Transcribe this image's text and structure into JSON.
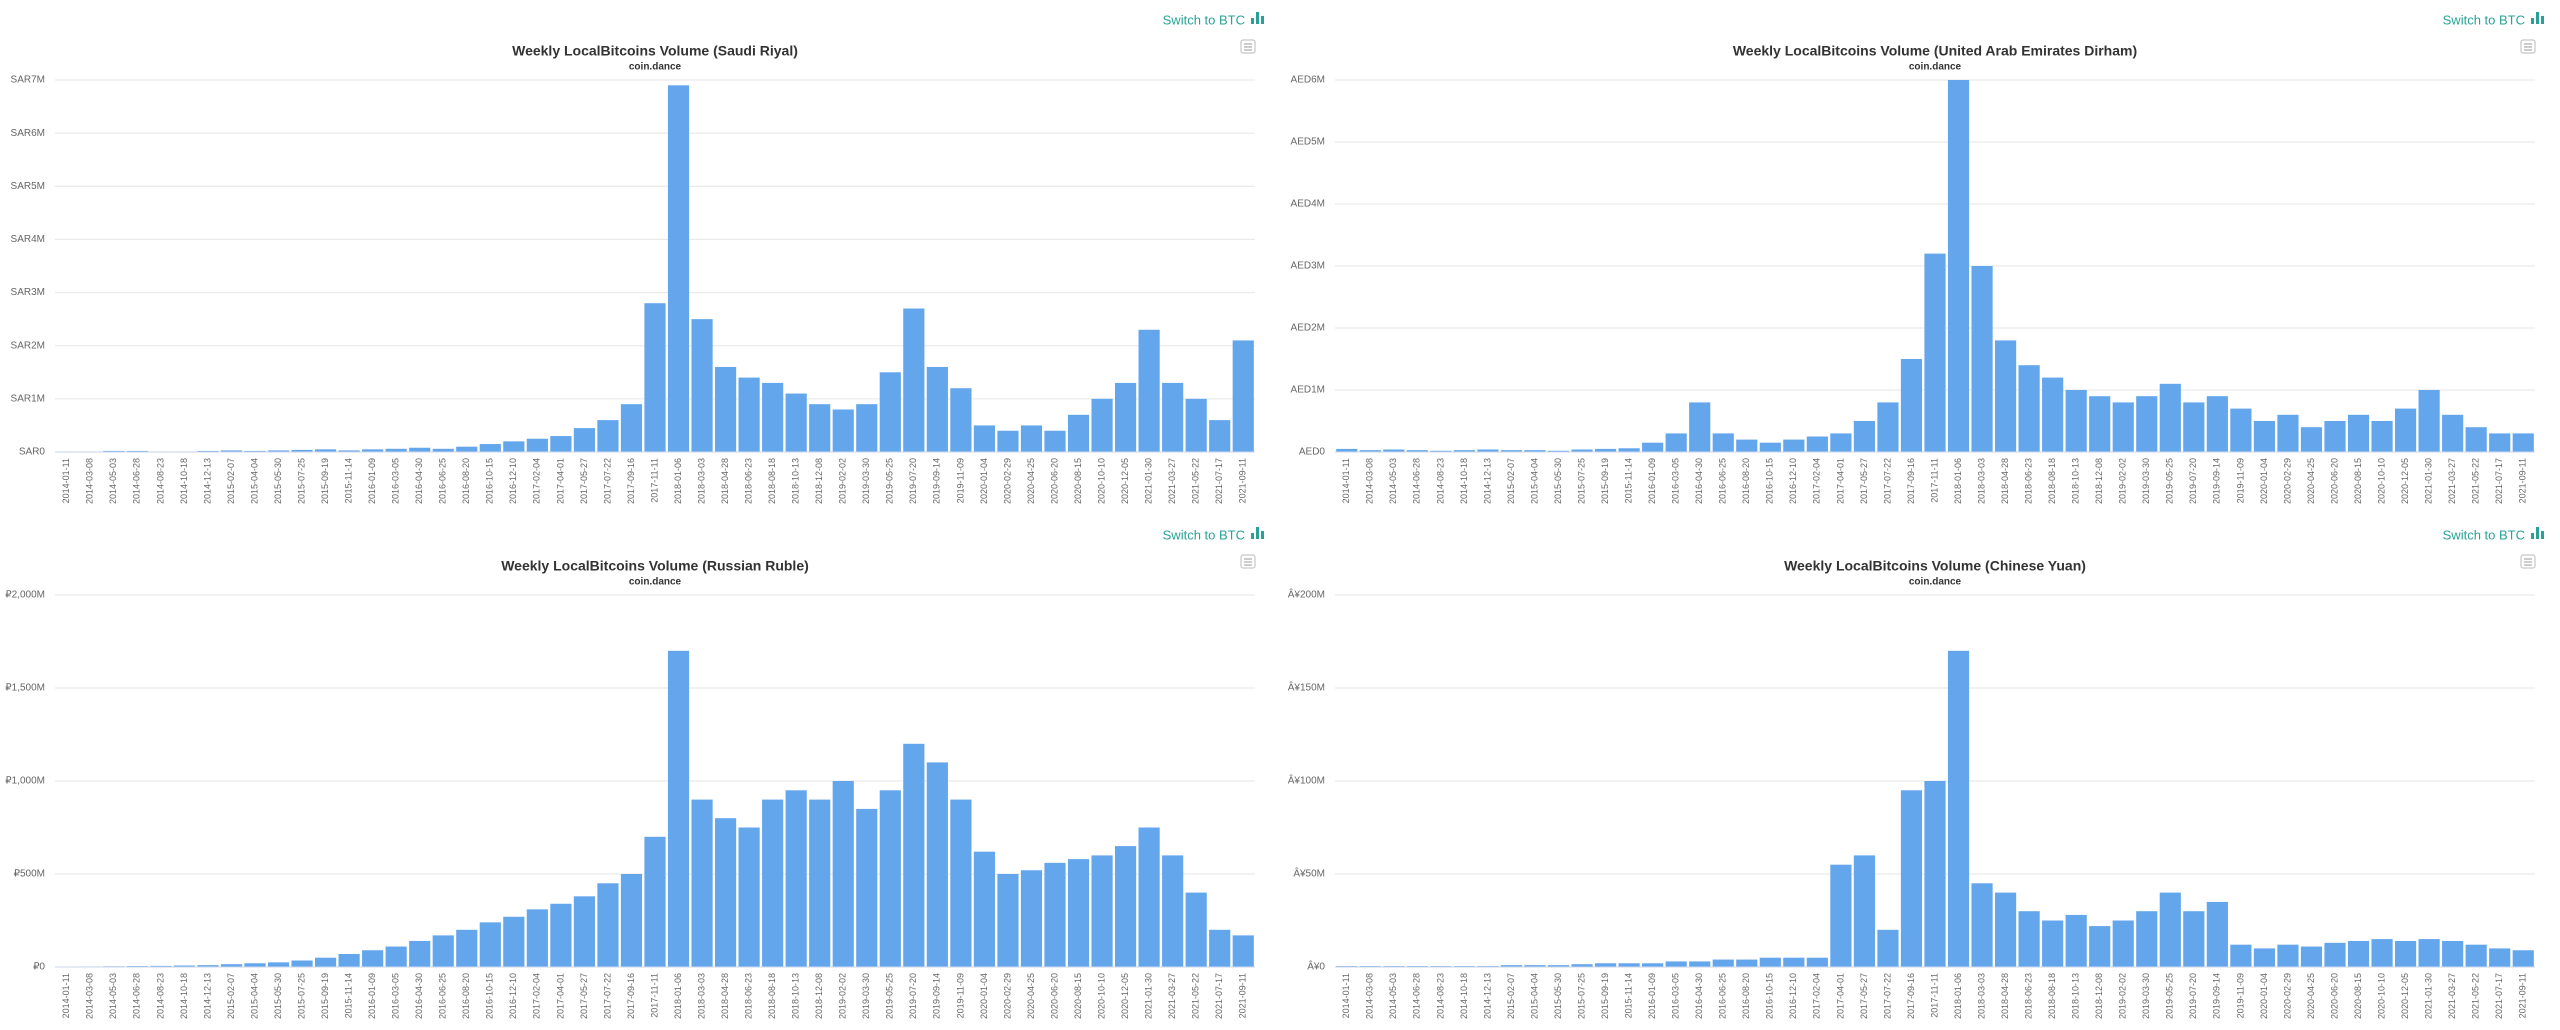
{
  "toggles": [
    "Switch to BTC",
    "Switch to BTC",
    "Switch to BTC",
    "Switch to BTC"
  ],
  "chart_data": [
    {
      "type": "bar",
      "title": "Weekly LocalBitcoins Volume (Saudi Riyal)",
      "subtitle": "coin.dance",
      "color": "#64a6ec",
      "grid": true,
      "categories": [
        "2014-01-11",
        "2014-03-08",
        "2014-05-03",
        "2014-06-28",
        "2014-08-23",
        "2014-10-18",
        "2014-12-13",
        "2015-02-07",
        "2015-04-04",
        "2015-05-30",
        "2015-07-25",
        "2015-09-19",
        "2015-11-14",
        "2016-01-09",
        "2016-03-05",
        "2016-04-30",
        "2016-06-25",
        "2016-08-20",
        "2016-10-15",
        "2016-12-10",
        "2017-02-04",
        "2017-04-01",
        "2017-05-27",
        "2017-07-22",
        "2017-09-16",
        "2017-11-11",
        "2018-01-06",
        "2018-03-03",
        "2018-04-28",
        "2018-06-23",
        "2018-08-18",
        "2018-10-13",
        "2018-12-08",
        "2019-02-02",
        "2019-03-30",
        "2019-05-25",
        "2019-07-20",
        "2019-09-14",
        "2019-11-09",
        "2020-01-04",
        "2020-02-29",
        "2020-04-25",
        "2020-06-20",
        "2020-08-15",
        "2020-10-10",
        "2020-12-05",
        "2021-01-30",
        "2021-03-27",
        "2021-05-22",
        "2021-07-17",
        "2021-09-11"
      ],
      "values": [
        10000,
        10000,
        20000,
        20000,
        10000,
        10000,
        20000,
        30000,
        20000,
        30000,
        40000,
        50000,
        30000,
        50000,
        60000,
        80000,
        60000,
        100000,
        150000,
        200000,
        250000,
        300000,
        450000,
        600000,
        900000,
        2800000,
        6900000,
        2500000,
        1600000,
        1400000,
        1300000,
        1100000,
        900000,
        800000,
        900000,
        1500000,
        2700000,
        1600000,
        1200000,
        500000,
        400000,
        500000,
        400000,
        700000,
        1000000,
        1300000,
        2300000,
        1300000,
        1000000,
        600000,
        2100000
      ],
      "ylim": [
        0,
        7000000
      ],
      "yticks": [
        {
          "value": 0,
          "label": "SAR0"
        },
        {
          "value": 1000000,
          "label": "SAR1M"
        },
        {
          "value": 2000000,
          "label": "SAR2M"
        },
        {
          "value": 3000000,
          "label": "SAR3M"
        },
        {
          "value": 4000000,
          "label": "SAR4M"
        },
        {
          "value": 5000000,
          "label": "SAR5M"
        },
        {
          "value": 6000000,
          "label": "SAR6M"
        },
        {
          "value": 7000000,
          "label": "SAR7M"
        }
      ]
    },
    {
      "type": "bar",
      "title": "Weekly LocalBitcoins Volume (United Arab Emirates Dirham)",
      "subtitle": "coin.dance",
      "color": "#64a6ec",
      "grid": true,
      "categories": [
        "2014-01-11",
        "2014-03-08",
        "2014-05-03",
        "2014-06-28",
        "2014-08-23",
        "2014-10-18",
        "2014-12-13",
        "2015-02-07",
        "2015-04-04",
        "2015-05-30",
        "2015-07-25",
        "2015-09-19",
        "2015-11-14",
        "2016-01-09",
        "2016-03-05",
        "2016-04-30",
        "2016-06-25",
        "2016-08-20",
        "2016-10-15",
        "2016-12-10",
        "2017-02-04",
        "2017-04-01",
        "2017-05-27",
        "2017-07-22",
        "2017-09-16",
        "2017-11-11",
        "2018-01-06",
        "2018-03-03",
        "2018-04-28",
        "2018-06-23",
        "2018-08-18",
        "2018-10-13",
        "2018-12-08",
        "2019-02-02",
        "2019-03-30",
        "2019-05-25",
        "2019-07-20",
        "2019-09-14",
        "2019-11-09",
        "2020-01-04",
        "2020-02-29",
        "2020-04-25",
        "2020-06-20",
        "2020-08-15",
        "2020-10-10",
        "2020-12-05",
        "2021-01-30",
        "2021-03-27",
        "2021-05-22",
        "2021-07-17",
        "2021-09-11"
      ],
      "values": [
        50000,
        30000,
        40000,
        30000,
        20000,
        30000,
        40000,
        30000,
        30000,
        20000,
        40000,
        50000,
        60000,
        150000,
        300000,
        800000,
        300000,
        200000,
        150000,
        200000,
        250000,
        300000,
        500000,
        800000,
        1500000,
        3200000,
        6000000,
        3000000,
        1800000,
        1400000,
        1200000,
        1000000,
        900000,
        800000,
        900000,
        1100000,
        800000,
        900000,
        700000,
        500000,
        600000,
        400000,
        500000,
        600000,
        500000,
        700000,
        1000000,
        600000,
        400000,
        300000,
        300000
      ],
      "ylim": [
        0,
        6000000
      ],
      "yticks": [
        {
          "value": 0,
          "label": "AED0"
        },
        {
          "value": 1000000,
          "label": "AED1M"
        },
        {
          "value": 2000000,
          "label": "AED2M"
        },
        {
          "value": 3000000,
          "label": "AED3M"
        },
        {
          "value": 4000000,
          "label": "AED4M"
        },
        {
          "value": 5000000,
          "label": "AED5M"
        },
        {
          "value": 6000000,
          "label": "AED6M"
        }
      ]
    },
    {
      "type": "bar",
      "title": "Weekly LocalBitcoins Volume (Russian Ruble)",
      "subtitle": "coin.dance",
      "color": "#64a6ec",
      "grid": true,
      "categories": [
        "2014-01-11",
        "2014-03-08",
        "2014-05-03",
        "2014-06-28",
        "2014-08-23",
        "2014-10-18",
        "2014-12-13",
        "2015-02-07",
        "2015-04-04",
        "2015-05-30",
        "2015-07-25",
        "2015-09-19",
        "2015-11-14",
        "2016-01-09",
        "2016-03-05",
        "2016-04-30",
        "2016-06-25",
        "2016-08-20",
        "2016-10-15",
        "2016-12-10",
        "2017-02-04",
        "2017-04-01",
        "2017-05-27",
        "2017-07-22",
        "2017-09-16",
        "2017-11-11",
        "2018-01-06",
        "2018-03-03",
        "2018-04-28",
        "2018-06-23",
        "2018-08-18",
        "2018-10-13",
        "2018-12-08",
        "2019-02-02",
        "2019-03-30",
        "2019-05-25",
        "2019-07-20",
        "2019-09-14",
        "2019-11-09",
        "2020-01-04",
        "2020-02-29",
        "2020-04-25",
        "2020-06-20",
        "2020-08-15",
        "2020-10-10",
        "2020-12-05",
        "2021-01-30",
        "2021-03-27",
        "2021-05-22",
        "2021-07-17",
        "2021-09-11"
      ],
      "values": [
        2000000,
        3000000,
        4000000,
        5000000,
        6000000,
        8000000,
        10000000,
        15000000,
        20000000,
        25000000,
        35000000,
        50000000,
        70000000,
        90000000,
        110000000,
        140000000,
        170000000,
        200000000,
        240000000,
        270000000,
        310000000,
        340000000,
        380000000,
        450000000,
        500000000,
        700000000,
        1700000000,
        900000000,
        800000000,
        750000000,
        900000000,
        950000000,
        900000000,
        1000000000,
        850000000,
        950000000,
        1200000000,
        1100000000,
        900000000,
        620000000,
        500000000,
        520000000,
        560000000,
        580000000,
        600000000,
        650000000,
        750000000,
        600000000,
        400000000,
        200000000,
        170000000
      ],
      "ylim": [
        0,
        2000000000
      ],
      "yticks": [
        {
          "value": 0,
          "label": "₽0"
        },
        {
          "value": 500000000,
          "label": "₽500M"
        },
        {
          "value": 1000000000,
          "label": "₽1,000M"
        },
        {
          "value": 1500000000,
          "label": "₽1,500M"
        },
        {
          "value": 2000000000,
          "label": "₽2,000M"
        }
      ]
    },
    {
      "type": "bar",
      "title": "Weekly LocalBitcoins Volume (Chinese Yuan)",
      "subtitle": "coin.dance",
      "color": "#64a6ec",
      "grid": true,
      "categories": [
        "2014-01-11",
        "2014-03-08",
        "2014-05-03",
        "2014-06-28",
        "2014-08-23",
        "2014-10-18",
        "2014-12-13",
        "2015-02-07",
        "2015-04-04",
        "2015-05-30",
        "2015-07-25",
        "2015-09-19",
        "2015-11-14",
        "2016-01-09",
        "2016-03-05",
        "2016-04-30",
        "2016-06-25",
        "2016-08-20",
        "2016-10-15",
        "2016-12-10",
        "2017-02-04",
        "2017-04-01",
        "2017-05-27",
        "2017-07-22",
        "2017-09-16",
        "2017-11-11",
        "2018-01-06",
        "2018-03-03",
        "2018-04-28",
        "2018-06-23",
        "2018-08-18",
        "2018-10-13",
        "2018-12-08",
        "2019-02-02",
        "2019-03-30",
        "2019-05-25",
        "2019-07-20",
        "2019-09-14",
        "2019-11-09",
        "2020-01-04",
        "2020-02-29",
        "2020-04-25",
        "2020-06-20",
        "2020-08-15",
        "2020-10-10",
        "2020-12-05",
        "2021-01-30",
        "2021-03-27",
        "2021-05-22",
        "2021-07-17",
        "2021-09-11"
      ],
      "values": [
        500000,
        500000,
        500000,
        500000,
        500000,
        500000,
        500000,
        1000000,
        1000000,
        1000000,
        1500000,
        2000000,
        2000000,
        2000000,
        3000000,
        3000000,
        4000000,
        4000000,
        5000000,
        5000000,
        5000000,
        55000000,
        60000000,
        20000000,
        95000000,
        100000000,
        170000000,
        45000000,
        40000000,
        30000000,
        25000000,
        28000000,
        22000000,
        25000000,
        30000000,
        40000000,
        30000000,
        35000000,
        12000000,
        10000000,
        12000000,
        11000000,
        13000000,
        14000000,
        15000000,
        14000000,
        15000000,
        14000000,
        12000000,
        10000000,
        9000000
      ],
      "ylim": [
        0,
        200000000
      ],
      "yticks": [
        {
          "value": 0,
          "label": "Â¥0"
        },
        {
          "value": 50000000,
          "label": "Â¥50M"
        },
        {
          "value": 100000000,
          "label": "Â¥100M"
        },
        {
          "value": 150000000,
          "label": "Â¥150M"
        },
        {
          "value": 200000000,
          "label": "Â¥200M"
        }
      ]
    }
  ]
}
